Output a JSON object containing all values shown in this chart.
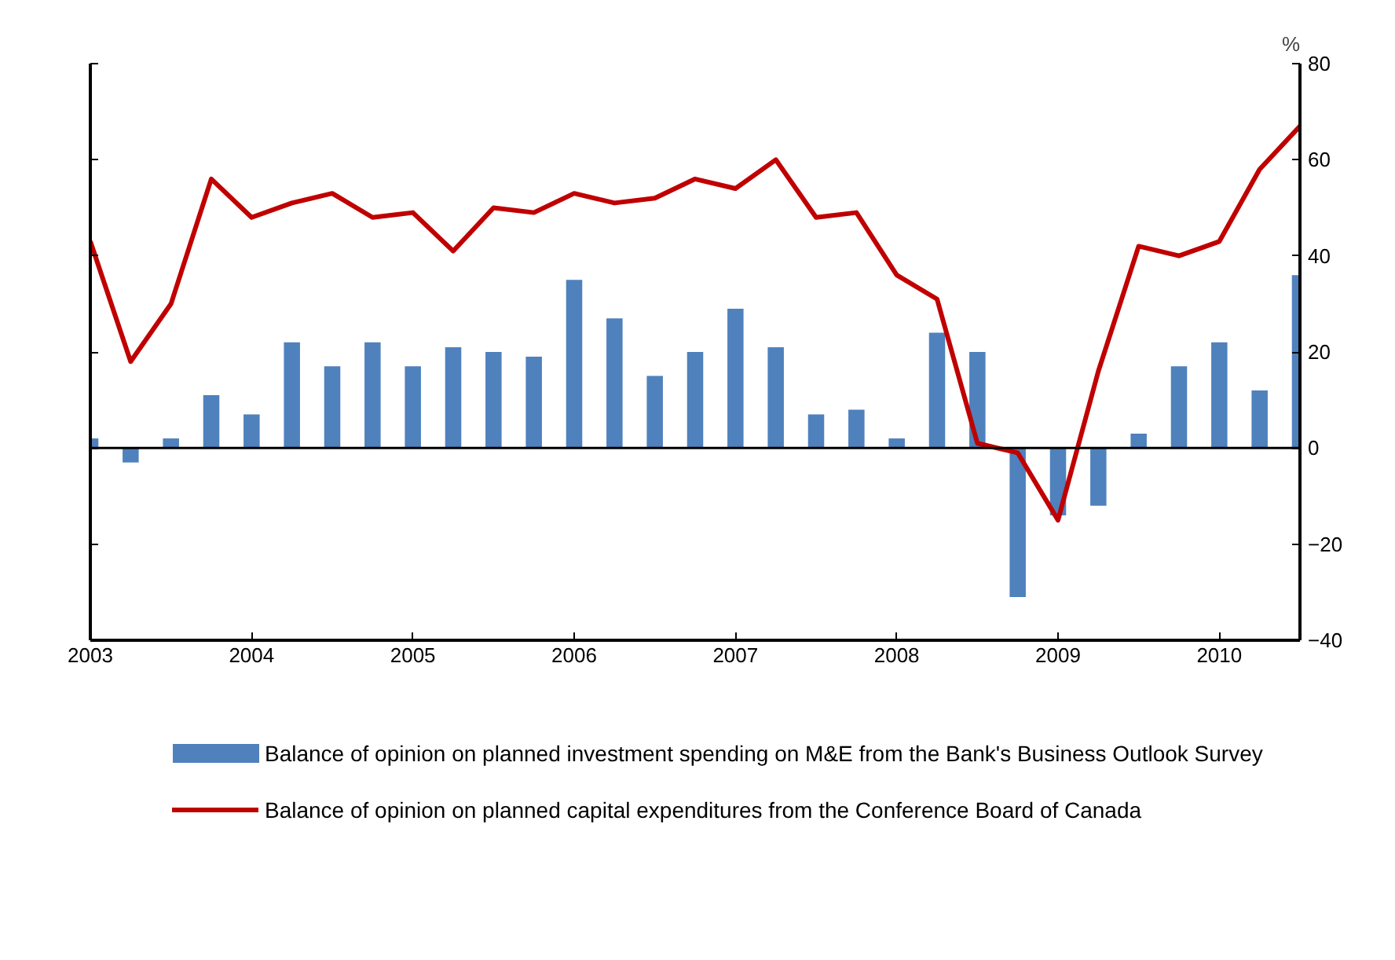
{
  "chart_data": {
    "type": "bar",
    "ylabel": "%",
    "x": [
      2003,
      2003.25,
      2003.5,
      2003.75,
      2004,
      2004.25,
      2004.5,
      2004.75,
      2005,
      2005.25,
      2005.5,
      2005.75,
      2006,
      2006.25,
      2006.5,
      2006.75,
      2007,
      2007.25,
      2007.5,
      2007.75,
      2008,
      2008.25,
      2008.5,
      2008.75,
      2009,
      2009.25,
      2009.5,
      2009.75,
      2010,
      2010.25,
      2010.5
    ],
    "series": [
      {
        "name": "Balance of opinion on planned investment spending on M&E from the Bank's Business Outlook Survey",
        "color": "#4f81bd",
        "values": [
          2,
          -3,
          2,
          11,
          7,
          22,
          17,
          22,
          17,
          21,
          20,
          19,
          35,
          27,
          15,
          20,
          29,
          21,
          7,
          8,
          2,
          24,
          20,
          -31,
          -14,
          -12,
          3,
          17,
          22,
          12,
          36
        ]
      },
      {
        "name": "Balance of opinion on planned capital expenditures from the Conference Board of Canada",
        "type": "line",
        "color": "#c00000",
        "values": [
          43,
          18,
          30,
          56,
          48,
          51,
          53,
          48,
          49,
          41,
          50,
          49,
          53,
          51,
          52,
          56,
          54,
          60,
          48,
          49,
          36,
          31,
          1,
          -1,
          -15,
          16,
          42,
          40,
          43,
          58,
          67
        ]
      }
    ],
    "xlim": [
      2003,
      2010.5
    ],
    "xticks": [
      2003,
      2004,
      2005,
      2006,
      2007,
      2008,
      2009,
      2010
    ],
    "ylim": [
      -40,
      80
    ],
    "yticks": [
      -40,
      -20,
      0,
      20,
      40,
      60,
      80
    ],
    "ref_lines": [
      {
        "axis": "y",
        "value": 0,
        "color": "#000000"
      }
    ],
    "grid": false,
    "legend": "bottom"
  }
}
